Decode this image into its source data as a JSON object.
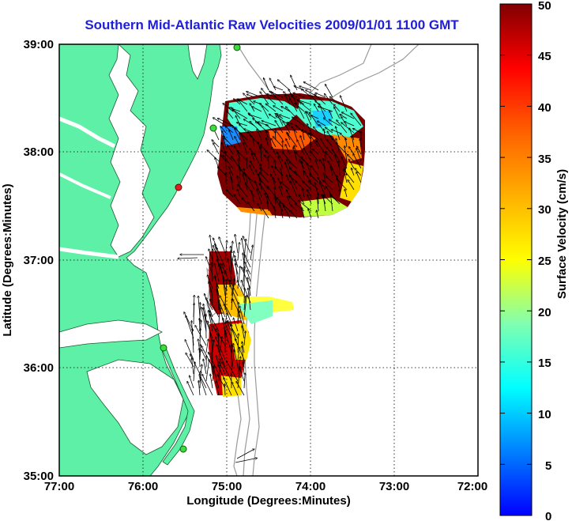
{
  "title": "Southern Mid-Atlantic Raw Velocities 2009/01/01 1100 GMT",
  "map": {
    "xlabel": "Longitude (Degrees:Minutes)",
    "ylabel": "Latitude (Degrees:Minutes)",
    "lon_range": [
      -77,
      -72
    ],
    "lat_range": [
      35,
      39
    ],
    "lon_ticks": [
      "77:00",
      "76:00",
      "75:00",
      "74:00",
      "73:00",
      "72:00"
    ],
    "lat_ticks": [
      "39:00",
      "38:00",
      "37:00",
      "36:00",
      "35:00"
    ],
    "land_color": "#5ef0a6",
    "bathymetry_color": "#9a9a9a",
    "grid": true
  },
  "colorbar": {
    "label": "Surface Velocity (cm/s)",
    "range": [
      0,
      50
    ],
    "ticks": [
      "50",
      "45",
      "40",
      "35",
      "30",
      "25",
      "20",
      "15",
      "10",
      "5",
      "0"
    ]
  },
  "chart_data": {
    "type": "heatmap",
    "quantity": "surface current speed (cm/s)",
    "regions": [
      {
        "lon": [
          -75.15,
          -73.6
        ],
        "lat": [
          37.35,
          38.65
        ],
        "speed_range": [
          5,
          50
        ]
      },
      {
        "lon": [
          -75.35,
          -74.35
        ],
        "lat": [
          35.9,
          37.1
        ],
        "speed_range": [
          15,
          50
        ]
      }
    ]
  }
}
